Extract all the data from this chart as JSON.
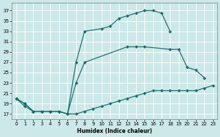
{
  "xlabel": "Humidex (Indice chaleur)",
  "background_color": "#cce8e8",
  "grid_color": "#ffffff",
  "line_color": "#1a6b6b",
  "ylim": [
    16,
    38.5
  ],
  "xlim": [
    -0.5,
    23.5
  ],
  "yticks": [
    17,
    19,
    21,
    23,
    25,
    27,
    29,
    31,
    33,
    35,
    37
  ],
  "xticks": [
    0,
    1,
    2,
    3,
    4,
    5,
    6,
    7,
    8,
    9,
    10,
    11,
    12,
    13,
    14,
    15,
    16,
    17,
    18,
    19,
    20,
    21,
    22,
    23
  ],
  "curve_top_x": [
    0,
    1,
    2,
    3,
    4,
    5,
    6,
    7,
    8,
    10,
    11,
    12,
    13,
    14,
    15,
    16,
    17,
    18
  ],
  "curve_top_y": [
    20,
    19,
    17.5,
    17.5,
    17.5,
    17.5,
    17,
    27,
    33,
    33.5,
    34,
    35.5,
    36,
    36.5,
    37,
    37,
    36.5,
    33
  ],
  "curve_mid_x": [
    0,
    1,
    2,
    3,
    4,
    5,
    6,
    7,
    8,
    13,
    14,
    15,
    18,
    19,
    20,
    21,
    22
  ],
  "curve_mid_y": [
    20,
    19,
    17.5,
    17.5,
    17.5,
    17.5,
    17,
    23,
    27,
    30,
    30,
    30,
    29.5,
    29.5,
    26,
    25.5,
    24
  ],
  "curve_bot_x": [
    0,
    1,
    2,
    3,
    4,
    5,
    6,
    7,
    8,
    9,
    10,
    11,
    12,
    13,
    14,
    15,
    16,
    17,
    18,
    19,
    20,
    21,
    22,
    23
  ],
  "curve_bot_y": [
    20,
    18.5,
    17.5,
    17.5,
    17.5,
    17.5,
    17,
    17,
    17.5,
    18,
    18.5,
    19,
    19.5,
    20,
    20.5,
    21,
    21.5,
    21.5,
    21.5,
    21.5,
    21.5,
    21.5,
    22,
    22.5
  ]
}
